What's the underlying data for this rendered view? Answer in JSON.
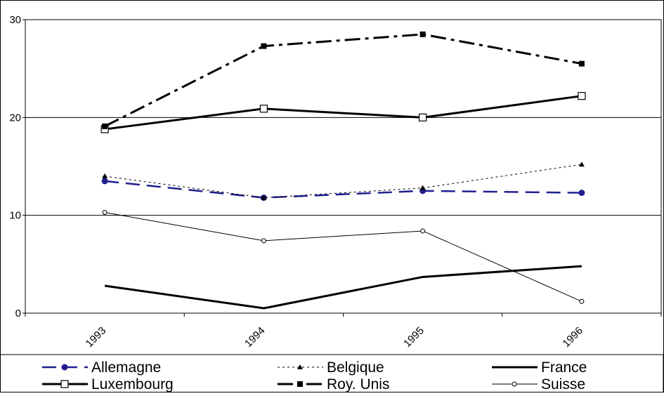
{
  "chart_data": {
    "type": "line",
    "title": "",
    "xlabel": "",
    "ylabel": "",
    "categories": [
      "1993",
      "1994",
      "1995",
      "1996"
    ],
    "ylim": [
      0,
      30
    ],
    "yticks": [
      "0",
      "10",
      "20",
      "30"
    ],
    "grid": "horizontal",
    "legend_position": "bottom",
    "series": [
      {
        "name": "Allemagne",
        "values": [
          13.5,
          11.8,
          12.5,
          12.3
        ],
        "color": "#1f1f8f",
        "dash": "long-dash",
        "marker": "filled-circle",
        "width": "medium"
      },
      {
        "name": "Belgique",
        "values": [
          14.0,
          11.8,
          12.8,
          15.2
        ],
        "color": "#000000",
        "dash": "dotted",
        "marker": "filled-triangle",
        "width": "thin"
      },
      {
        "name": "France",
        "values": [
          2.8,
          0.5,
          3.7,
          4.8
        ],
        "color": "#000000",
        "dash": "solid",
        "marker": "none",
        "width": "thick"
      },
      {
        "name": "Luxembourg",
        "values": [
          18.8,
          20.9,
          20.0,
          22.2
        ],
        "color": "#000000",
        "dash": "solid",
        "marker": "open-square",
        "width": "thick"
      },
      {
        "name": "Roy. Unis",
        "values": [
          19.1,
          27.3,
          28.5,
          25.5
        ],
        "color": "#000000",
        "dash": "dash-dot",
        "marker": "filled-square",
        "width": "thick"
      },
      {
        "name": "Suisse",
        "values": [
          10.3,
          7.4,
          8.4,
          1.2
        ],
        "color": "#000000",
        "dash": "solid",
        "marker": "open-circle",
        "width": "thin"
      }
    ]
  }
}
